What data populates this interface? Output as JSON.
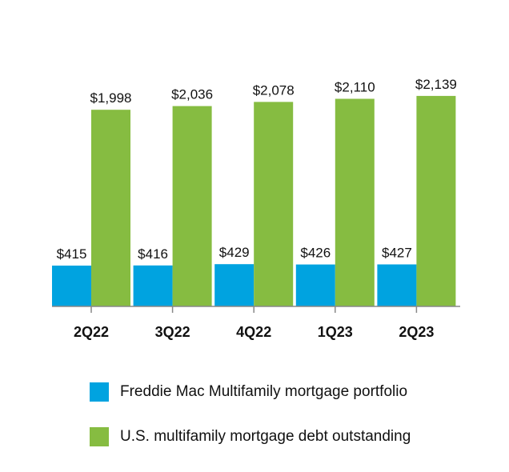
{
  "chart_data": {
    "type": "bar",
    "categories": [
      "2Q22",
      "3Q22",
      "4Q22",
      "1Q23",
      "2Q23"
    ],
    "series": [
      {
        "name": "Freddie Mac Multifamily mortgage portfolio",
        "color": "#00a3e0",
        "values": [
          415,
          416,
          429,
          426,
          427
        ],
        "labels": [
          "$415",
          "$416",
          "$429",
          "$426",
          "$427"
        ]
      },
      {
        "name": "U.S. multifamily mortgage debt outstanding",
        "color": "#86bc41",
        "values": [
          1998,
          2036,
          2078,
          2110,
          2139
        ],
        "labels": [
          "$1,998",
          "$2,036",
          "$2,078",
          "$2,110",
          "$2,139"
        ]
      }
    ],
    "ylim": [
      0,
      2130
    ],
    "axis_color": "#888888",
    "legend_position": "bottom",
    "grid": false
  }
}
